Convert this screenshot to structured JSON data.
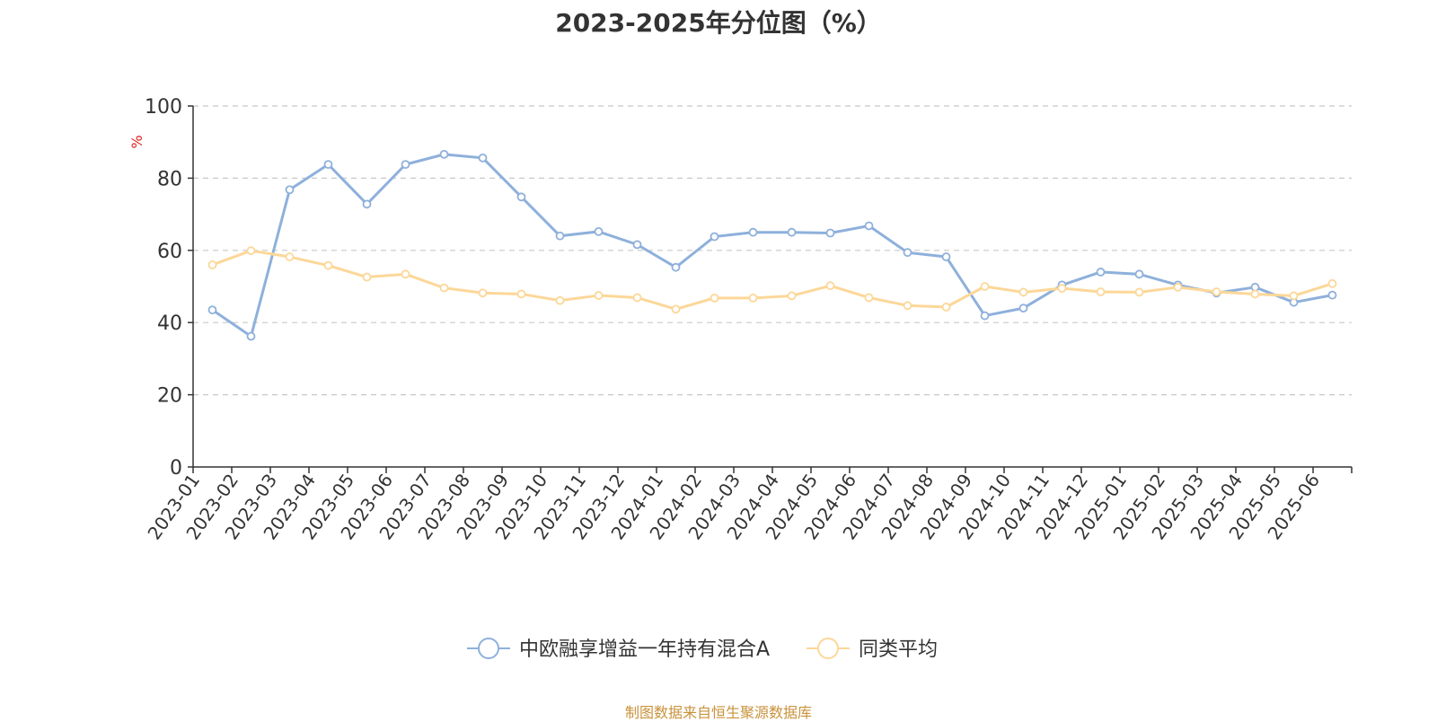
{
  "title": "2023-2025年分位图（%）",
  "source_note": "制图数据来自恒生聚源数据库",
  "chart_data": {
    "type": "line",
    "title": "2023-2025年分位图（%）",
    "ylabel": "%",
    "ylim": [
      0,
      100
    ],
    "yticks": [
      0,
      20,
      40,
      60,
      80,
      100
    ],
    "grid": true,
    "legend_position": "bottom-center",
    "categories": [
      "2023-01",
      "2023-02",
      "2023-03",
      "2023-04",
      "2023-05",
      "2023-06",
      "2023-07",
      "2023-08",
      "2023-09",
      "2023-10",
      "2023-11",
      "2023-12",
      "2024-01",
      "2024-02",
      "2024-03",
      "2024-04",
      "2024-05",
      "2024-06",
      "2024-07",
      "2024-08",
      "2024-09",
      "2024-10",
      "2024-11",
      "2024-12",
      "2025-01",
      "2025-02",
      "2025-03",
      "2025-04",
      "2025-05",
      "2025-06"
    ],
    "series": [
      {
        "name": "中欧融享增益一年持有混合A",
        "color": "#8eb0db",
        "values": [
          43.5,
          36.2,
          76.8,
          83.8,
          72.8,
          83.8,
          86.6,
          85.6,
          74.8,
          64.0,
          65.2,
          61.6,
          55.3,
          63.8,
          65.0,
          65.0,
          64.8,
          66.8,
          59.4,
          58.2,
          41.9,
          44.0,
          50.4,
          54.0,
          53.4,
          50.4,
          48.2,
          49.8,
          45.6,
          47.6
        ]
      },
      {
        "name": "同类平均",
        "color": "#fcd798",
        "values": [
          56.0,
          59.9,
          58.2,
          55.8,
          52.6,
          53.4,
          49.6,
          48.2,
          47.9,
          46.1,
          47.5,
          46.9,
          43.7,
          46.8,
          46.8,
          47.4,
          50.2,
          46.9,
          44.7,
          44.3,
          50.0,
          48.4,
          49.5,
          48.5,
          48.4,
          49.8,
          48.5,
          47.9,
          47.4,
          50.8
        ]
      }
    ]
  }
}
